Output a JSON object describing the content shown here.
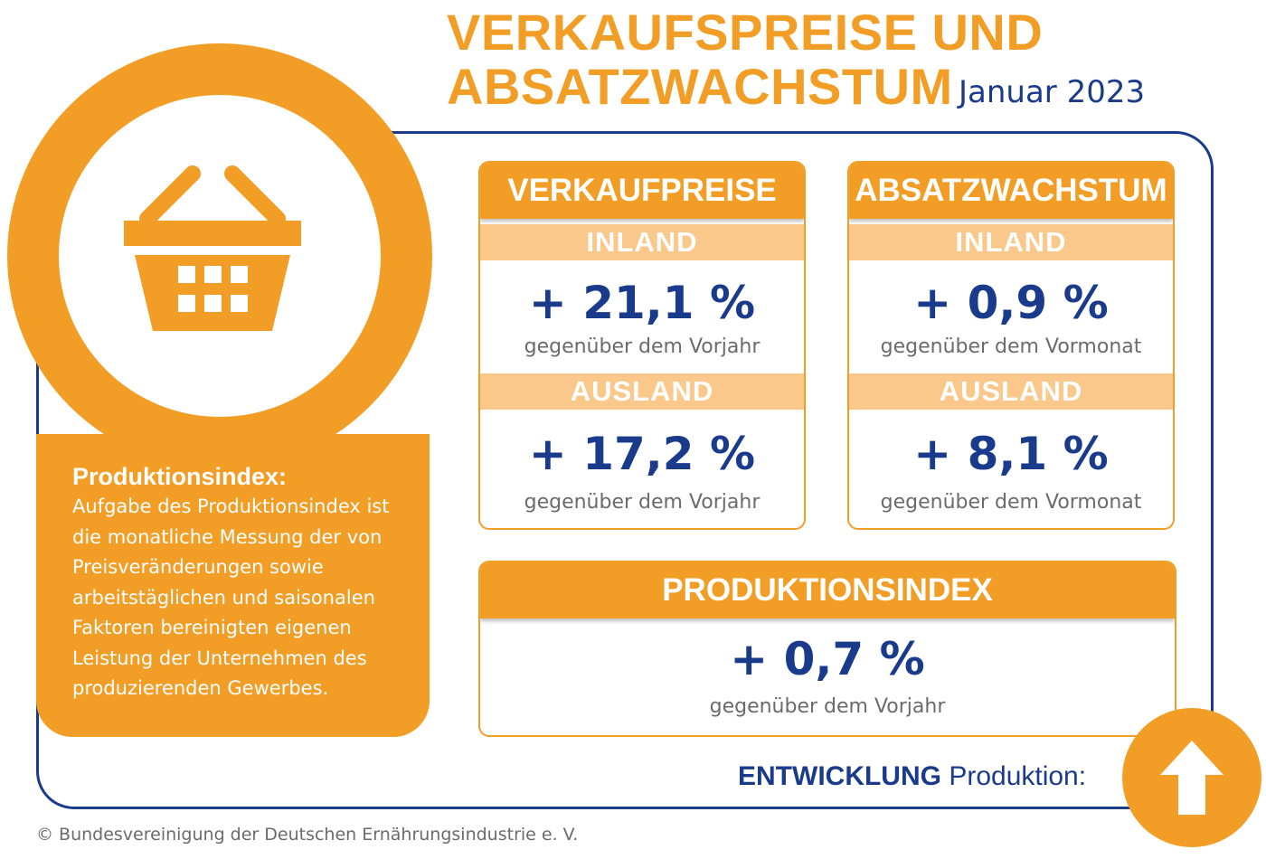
{
  "header": {
    "title_line1": "VERKAUFSPREISE UND",
    "title_line2": "ABSATZWACHSTUM",
    "date": "Januar 2023"
  },
  "info": {
    "title": "Produktionsindex:",
    "text": "Aufgabe des Produktionsindex ist die monatliche Messung der von Preisveränderungen sowie arbeitstäglichen und saisonalen Faktoren bereinigten eigenen Leistung der Unternehmen des produzierenden Gewerbes.",
    "icon": "shopping-basket-icon"
  },
  "panels": [
    {
      "title": "VERKAUFPREISE",
      "rows": [
        {
          "label": "INLAND",
          "value": "+ 21,1 %",
          "note": "gegenüber dem Vorjahr"
        },
        {
          "label": "AUSLAND",
          "value": "+ 17,2 %",
          "note": "gegenüber dem Vorjahr"
        }
      ]
    },
    {
      "title": "ABSATZWACHSTUM",
      "rows": [
        {
          "label": "INLAND",
          "value": "+ 0,9 %",
          "note": "gegenüber dem Vormonat"
        },
        {
          "label": "AUSLAND",
          "value": "+ 8,1 %",
          "note": "gegenüber dem Vormonat"
        }
      ]
    }
  ],
  "production": {
    "title": "PRODUKTIONSINDEX",
    "value": "+ 0,7 %",
    "note": "gegenüber dem Vorjahr"
  },
  "trend": {
    "label_bold": "ENTWICKLUNG",
    "label_rest": " Produktion:",
    "icon": "arrow-up-icon"
  },
  "footer": "© Bundesvereinigung der Deutschen Ernährungsindustrie e. V.",
  "colors": {
    "orange": "#F29E26",
    "light_orange": "#F9C88A",
    "navy": "#1A3A8C",
    "gray": "#6b6b6b"
  }
}
